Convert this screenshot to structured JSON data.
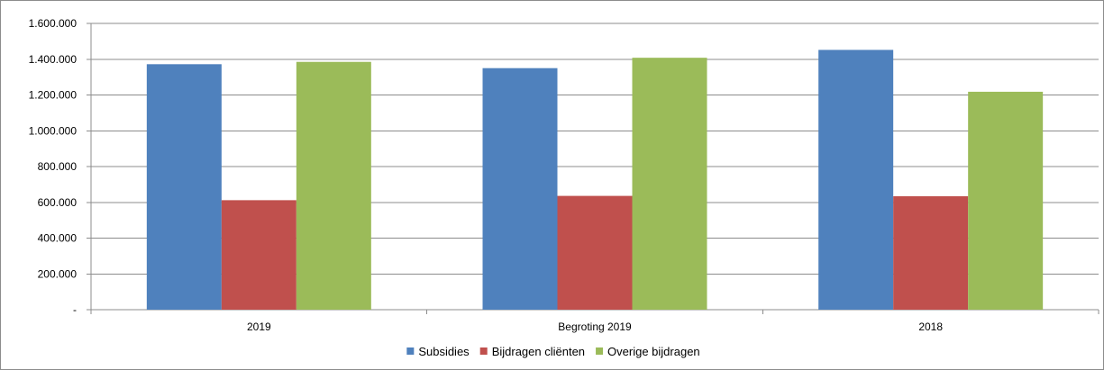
{
  "chart_data": {
    "type": "bar",
    "categories": [
      "2019",
      "Begroting 2019",
      "2018"
    ],
    "series": [
      {
        "name": "Subsidies",
        "color": "#4F81BD",
        "values": [
          1372000,
          1350000,
          1452000
        ]
      },
      {
        "name": "Bijdragen cliënten",
        "color": "#C0504D",
        "values": [
          612000,
          636000,
          634000
        ]
      },
      {
        "name": "Overige bijdragen",
        "color": "#9BBB59",
        "values": [
          1385000,
          1408000,
          1218000
        ]
      }
    ],
    "ylim": [
      0,
      1600000
    ],
    "yticks": [
      0,
      200000,
      400000,
      600000,
      800000,
      1000000,
      1200000,
      1400000,
      1600000
    ],
    "ytick_labels": [
      "-",
      "200.000",
      "400.000",
      "600.000",
      "800.000",
      "1.000.000",
      "1.200.000",
      "1.400.000",
      "1.600.000"
    ],
    "grid": true,
    "legend": "bottom-center"
  }
}
